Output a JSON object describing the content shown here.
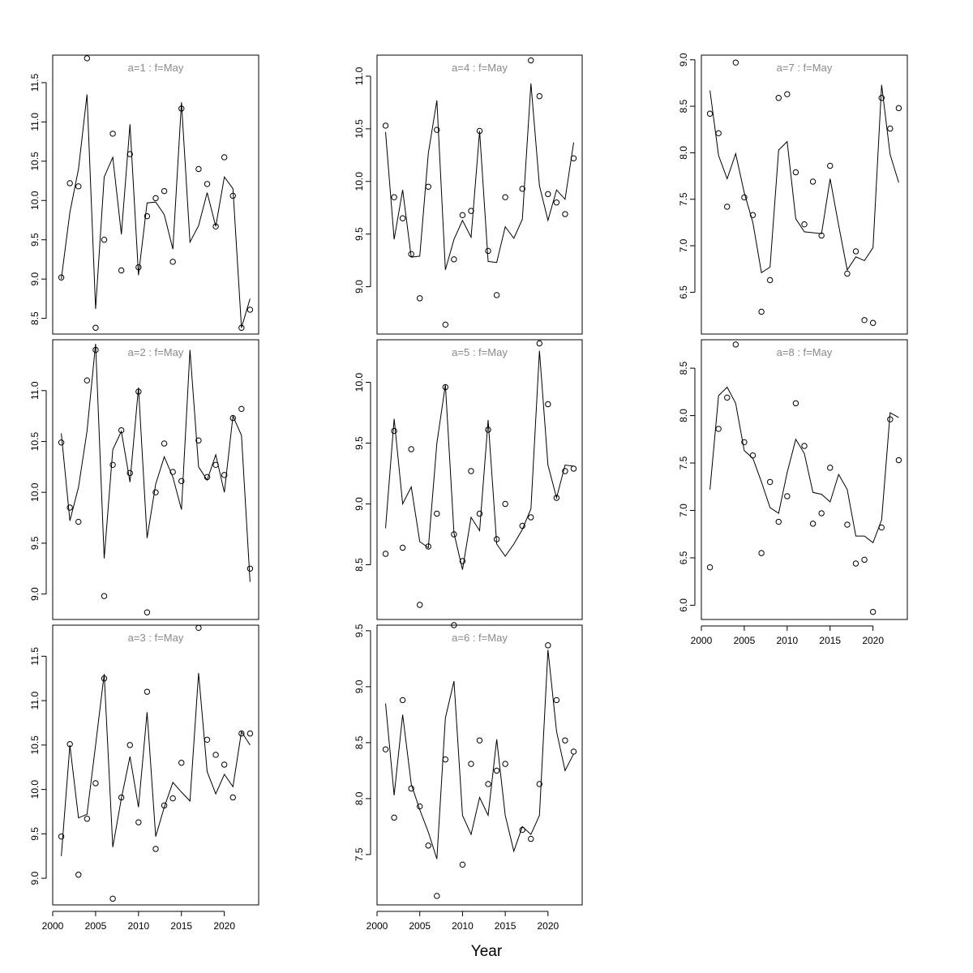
{
  "xlabel": "Year",
  "chart_data": [
    {
      "type": "line",
      "title": "a=1  :  f=May",
      "x": [
        2001,
        2002,
        2003,
        2004,
        2005,
        2006,
        2007,
        2008,
        2009,
        2010,
        2011,
        2012,
        2013,
        2014,
        2015,
        2016,
        2017,
        2018,
        2019,
        2020,
        2021,
        2022,
        2023
      ],
      "series": [
        {
          "values": [
            9.02,
            10.22,
            10.18,
            11.81,
            8.38,
            9.5,
            10.85,
            9.11,
            10.59,
            9.15,
            9.8,
            10.03,
            10.12,
            9.22,
            11.17,
            null,
            10.4,
            10.21,
            9.67,
            10.55,
            10.06,
            8.38,
            8.61
          ]
        },
        {
          "values": [
            9.0,
            9.85,
            10.4,
            11.35,
            8.62,
            10.3,
            10.55,
            9.57,
            10.97,
            9.05,
            9.97,
            9.98,
            9.82,
            9.38,
            11.25,
            9.47,
            9.68,
            10.1,
            9.67,
            10.3,
            10.15,
            8.38,
            8.75
          ]
        }
      ],
      "ylim": [
        8.3,
        11.85
      ],
      "yticks": [
        8.5,
        9.0,
        9.5,
        10.0,
        10.5,
        11.0,
        11.5
      ],
      "xlim": [
        2000,
        2024
      ]
    },
    {
      "type": "line",
      "title": "a=2  :  f=May",
      "x": [
        2001,
        2002,
        2003,
        2004,
        2005,
        2006,
        2007,
        2008,
        2009,
        2010,
        2011,
        2012,
        2013,
        2014,
        2015,
        2016,
        2017,
        2018,
        2019,
        2020,
        2021,
        2022,
        2023
      ],
      "series": [
        {
          "values": [
            10.49,
            9.85,
            9.71,
            11.1,
            11.4,
            8.98,
            10.27,
            10.61,
            10.19,
            10.99,
            8.82,
            10.0,
            10.48,
            10.2,
            10.11,
            null,
            10.51,
            10.15,
            10.27,
            10.17,
            10.73,
            10.82,
            9.25
          ]
        },
        {
          "values": [
            10.58,
            9.72,
            10.05,
            10.6,
            11.46,
            9.35,
            10.42,
            10.6,
            10.1,
            11.03,
            9.55,
            10.08,
            10.35,
            10.15,
            9.83,
            11.4,
            10.25,
            10.12,
            10.37,
            10.0,
            10.75,
            10.56,
            9.12
          ]
        }
      ],
      "ylim": [
        8.75,
        11.5
      ],
      "yticks": [
        9.0,
        9.5,
        10.0,
        10.5,
        11.0
      ],
      "xlim": [
        2000,
        2024
      ]
    },
    {
      "type": "line",
      "title": "a=3  :  f=May",
      "x": [
        2001,
        2002,
        2003,
        2004,
        2005,
        2006,
        2007,
        2008,
        2009,
        2010,
        2011,
        2012,
        2013,
        2014,
        2015,
        2016,
        2017,
        2018,
        2019,
        2020,
        2021,
        2022,
        2023
      ],
      "series": [
        {
          "values": [
            9.47,
            10.51,
            9.04,
            9.67,
            10.07,
            11.25,
            8.77,
            9.91,
            10.5,
            9.63,
            11.1,
            9.33,
            9.82,
            9.9,
            10.3,
            null,
            11.82,
            10.56,
            10.39,
            10.28,
            9.91,
            10.63,
            10.63
          ]
        },
        {
          "values": [
            9.25,
            10.5,
            9.68,
            9.72,
            10.5,
            11.3,
            9.35,
            9.9,
            10.37,
            9.8,
            10.87,
            9.47,
            9.8,
            10.08,
            9.97,
            9.87,
            11.31,
            10.2,
            9.95,
            10.17,
            10.03,
            10.65,
            10.5
          ]
        }
      ],
      "ylim": [
        8.7,
        11.85
      ],
      "yticks": [
        9.0,
        9.5,
        10.0,
        10.5,
        11.0,
        11.5
      ],
      "xlim": [
        2000,
        2024
      ]
    },
    {
      "type": "line",
      "title": "a=4  :  f=May",
      "x": [
        2001,
        2002,
        2003,
        2004,
        2005,
        2006,
        2007,
        2008,
        2009,
        2010,
        2011,
        2012,
        2013,
        2014,
        2015,
        2016,
        2017,
        2018,
        2019,
        2020,
        2021,
        2022,
        2023
      ],
      "series": [
        {
          "values": [
            10.53,
            9.85,
            9.65,
            9.31,
            8.89,
            9.95,
            10.49,
            8.64,
            9.26,
            9.68,
            9.72,
            10.48,
            9.34,
            8.92,
            9.85,
            null,
            9.93,
            11.15,
            10.81,
            9.88,
            9.8,
            9.69,
            10.22
          ]
        },
        {
          "values": [
            10.47,
            9.45,
            9.92,
            9.28,
            9.29,
            10.27,
            10.77,
            9.16,
            9.45,
            9.63,
            9.47,
            10.48,
            9.24,
            9.23,
            9.57,
            9.46,
            9.64,
            10.93,
            9.96,
            9.63,
            9.92,
            9.83,
            10.37
          ]
        }
      ],
      "ylim": [
        8.55,
        11.2
      ],
      "yticks": [
        9.0,
        9.5,
        10.0,
        10.5,
        11.0
      ],
      "xlim": [
        2000,
        2024
      ]
    },
    {
      "type": "line",
      "title": "a=5  :  f=May",
      "x": [
        2001,
        2002,
        2003,
        2004,
        2005,
        2006,
        2007,
        2008,
        2009,
        2010,
        2011,
        2012,
        2013,
        2014,
        2015,
        2016,
        2017,
        2018,
        2019,
        2020,
        2021,
        2022,
        2023
      ],
      "series": [
        {
          "values": [
            8.59,
            9.6,
            8.64,
            9.45,
            8.17,
            8.65,
            8.92,
            9.96,
            8.75,
            8.53,
            9.27,
            8.92,
            9.61,
            8.71,
            9.0,
            null,
            8.82,
            8.89,
            10.32,
            9.82,
            9.05,
            9.27,
            9.29
          ]
        },
        {
          "values": [
            8.8,
            9.7,
            9.0,
            9.14,
            8.69,
            8.64,
            9.5,
            9.98,
            8.76,
            8.46,
            8.89,
            8.78,
            9.69,
            8.67,
            8.57,
            8.67,
            8.79,
            8.96,
            10.26,
            9.32,
            9.05,
            9.32,
            9.31
          ]
        }
      ],
      "ylim": [
        8.05,
        10.35
      ],
      "yticks": [
        8.5,
        9.0,
        9.5,
        10.0
      ],
      "xlim": [
        2000,
        2024
      ]
    },
    {
      "type": "line",
      "title": "a=6  :  f=May",
      "x": [
        2001,
        2002,
        2003,
        2004,
        2005,
        2006,
        2007,
        2008,
        2009,
        2010,
        2011,
        2012,
        2013,
        2014,
        2015,
        2016,
        2017,
        2018,
        2019,
        2020,
        2021,
        2022,
        2023
      ],
      "series": [
        {
          "values": [
            8.44,
            7.83,
            8.88,
            8.09,
            7.93,
            7.58,
            7.13,
            8.35,
            9.55,
            7.41,
            8.31,
            8.52,
            8.13,
            8.25,
            8.31,
            null,
            7.72,
            7.64,
            8.13,
            9.37,
            8.88,
            8.52,
            8.42
          ]
        },
        {
          "values": [
            8.85,
            8.03,
            8.75,
            8.13,
            7.9,
            7.7,
            7.46,
            8.72,
            9.05,
            7.85,
            7.68,
            8.01,
            7.85,
            8.53,
            7.85,
            7.53,
            7.75,
            7.68,
            7.85,
            9.33,
            8.6,
            8.25,
            8.4
          ]
        }
      ],
      "ylim": [
        7.05,
        9.55
      ],
      "yticks": [
        7.5,
        8.0,
        8.5,
        9.0,
        9.5
      ],
      "xlim": [
        2000,
        2024
      ]
    },
    {
      "type": "line",
      "title": "a=7  :  f=May",
      "x": [
        2001,
        2002,
        2003,
        2004,
        2005,
        2006,
        2007,
        2008,
        2009,
        2010,
        2011,
        2012,
        2013,
        2014,
        2015,
        2016,
        2017,
        2018,
        2019,
        2020,
        2021,
        2022,
        2023
      ],
      "series": [
        {
          "values": [
            8.42,
            8.21,
            7.42,
            8.97,
            7.52,
            7.33,
            6.29,
            6.63,
            8.59,
            8.63,
            7.79,
            7.23,
            7.69,
            7.11,
            7.86,
            null,
            6.7,
            6.94,
            6.2,
            6.17,
            8.59,
            8.26,
            8.48
          ]
        },
        {
          "values": [
            8.67,
            7.97,
            7.72,
            7.99,
            7.57,
            7.25,
            6.71,
            6.77,
            8.03,
            8.12,
            7.29,
            7.15,
            7.14,
            7.13,
            7.72,
            7.22,
            6.74,
            6.88,
            6.84,
            6.98,
            8.73,
            7.98,
            7.68
          ]
        }
      ],
      "ylim": [
        6.05,
        9.05
      ],
      "yticks": [
        6.5,
        7.0,
        7.5,
        8.0,
        8.5,
        9.0
      ],
      "xlim": [
        2000,
        2024
      ]
    },
    {
      "type": "line",
      "title": "a=8  :  f=May",
      "x": [
        2001,
        2002,
        2003,
        2004,
        2005,
        2006,
        2007,
        2008,
        2009,
        2010,
        2011,
        2012,
        2013,
        2014,
        2015,
        2016,
        2017,
        2018,
        2019,
        2020,
        2021,
        2022,
        2023
      ],
      "series": [
        {
          "values": [
            6.4,
            7.86,
            8.19,
            8.75,
            7.72,
            7.58,
            6.55,
            7.3,
            6.88,
            7.15,
            8.13,
            7.68,
            6.86,
            6.97,
            7.45,
            null,
            6.85,
            6.44,
            6.48,
            5.93,
            6.82,
            7.96,
            7.53
          ]
        },
        {
          "values": [
            7.22,
            8.21,
            8.3,
            8.13,
            7.63,
            7.55,
            7.3,
            7.03,
            6.97,
            7.4,
            7.75,
            7.6,
            7.19,
            7.17,
            7.09,
            7.38,
            7.22,
            6.73,
            6.73,
            6.66,
            6.9,
            8.03,
            7.98
          ]
        }
      ],
      "ylim": [
        5.85,
        8.8
      ],
      "yticks": [
        6.0,
        6.5,
        7.0,
        7.5,
        8.0,
        8.5
      ],
      "xlim": [
        2000,
        2024
      ]
    }
  ],
  "xtick_labels": [
    "2000",
    "2005",
    "2010",
    "2015",
    "2020"
  ]
}
